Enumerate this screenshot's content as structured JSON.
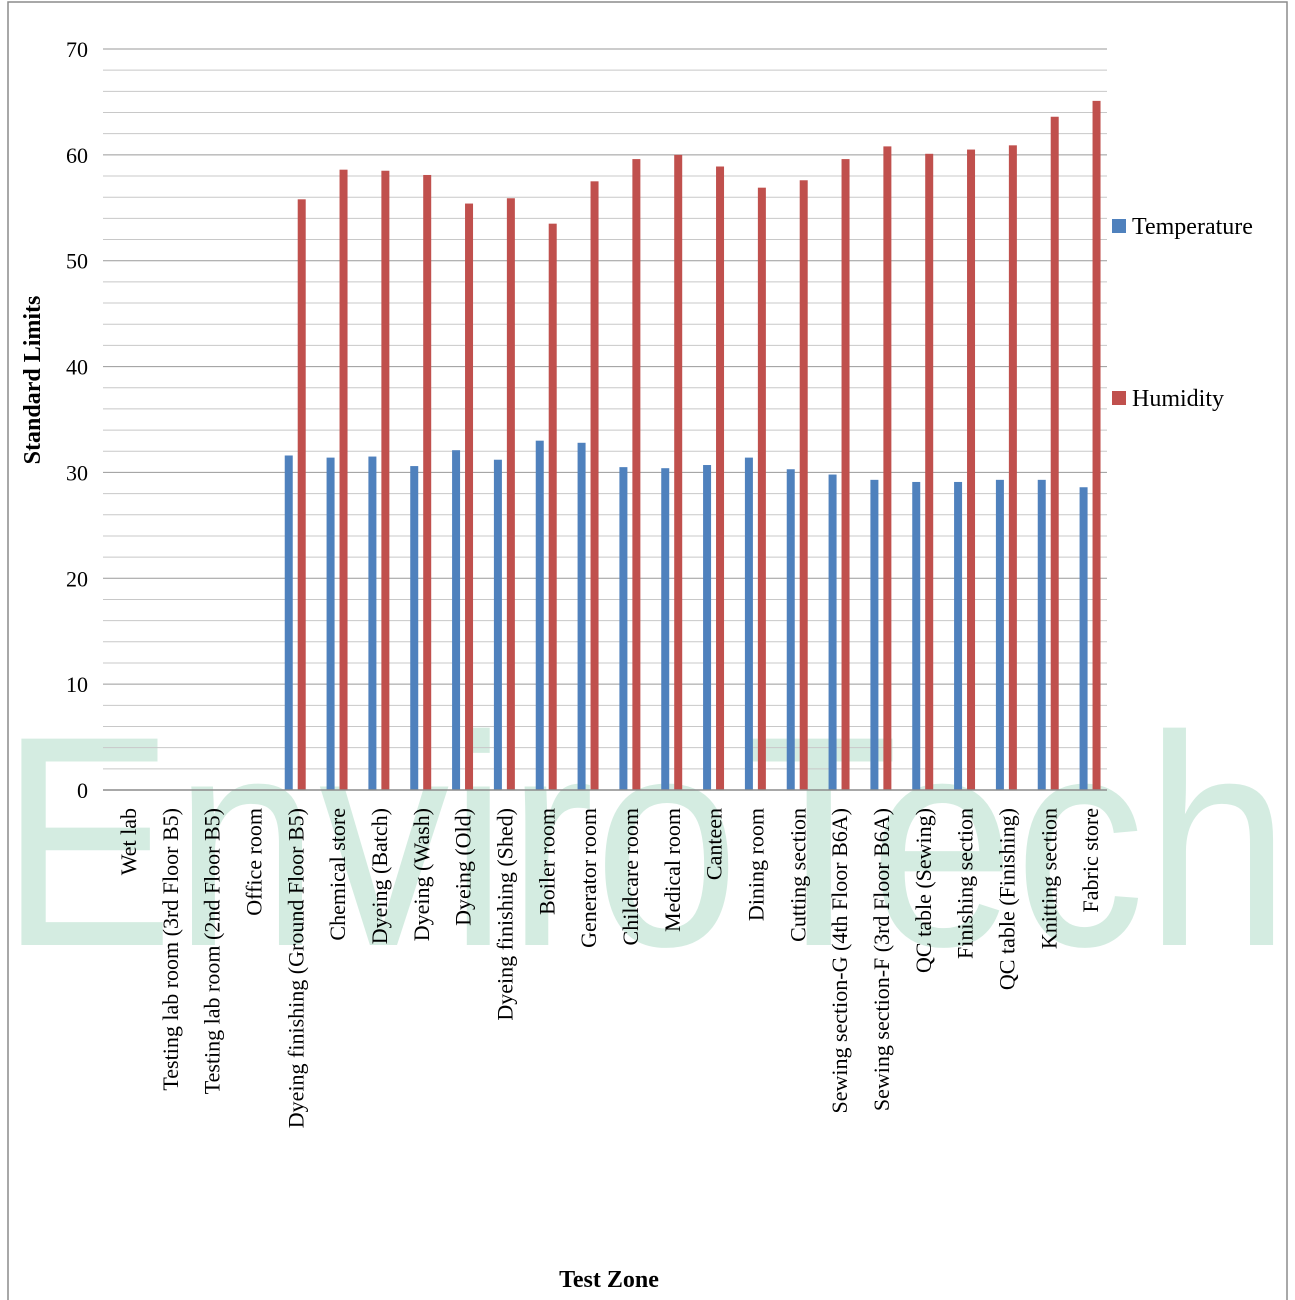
{
  "watermark": "EnviroTech",
  "colors": {
    "temperature": "#4f81bd",
    "humidity": "#c0504d"
  },
  "chart_data": {
    "type": "bar",
    "title": "",
    "xlabel": "Test Zone",
    "ylabel": "Standard Limits",
    "ylim": [
      0,
      70
    ],
    "yticks": [
      0,
      10,
      20,
      30,
      40,
      50,
      60,
      70
    ],
    "grid": true,
    "legend_position": "right",
    "categories": [
      "Wet lab",
      "Testing lab room (3rd Floor B5)",
      "Testing lab room (2nd Floor B5)",
      "Office room",
      "Dyeing finishing (Ground Floor B5)",
      "Chemical store",
      "Dyeing (Batch)",
      "Dyeing (Wash)",
      "Dyeing (Old)",
      "Dyeing finishing (Shed)",
      "Boiler room",
      "Generator room",
      "Childcare room",
      "Medical room",
      "Canteen",
      "Dining room",
      "Cutting section",
      "Sewing section-G (4th Floor B6A)",
      "Sewing section-F (3rd Floor B6A)",
      "QC table (Sewing)",
      "Finishing section",
      "QC table (Finishing)",
      "Knitting section",
      "Fabric store"
    ],
    "series": [
      {
        "name": "Temperature",
        "values": [
          0,
          0,
          0,
          0,
          31.6,
          31.4,
          31.5,
          30.6,
          32.1,
          31.2,
          33.0,
          32.8,
          30.5,
          30.4,
          30.7,
          31.4,
          30.3,
          29.8,
          29.3,
          29.1,
          29.1,
          29.3,
          29.3,
          28.6
        ]
      },
      {
        "name": "Humidity",
        "values": [
          0,
          0,
          0,
          0,
          55.8,
          58.6,
          58.5,
          58.1,
          55.4,
          55.9,
          53.5,
          57.5,
          59.6,
          60.0,
          58.9,
          56.9,
          57.6,
          59.6,
          60.8,
          60.1,
          60.5,
          60.9,
          63.6,
          65.1
        ]
      }
    ]
  }
}
